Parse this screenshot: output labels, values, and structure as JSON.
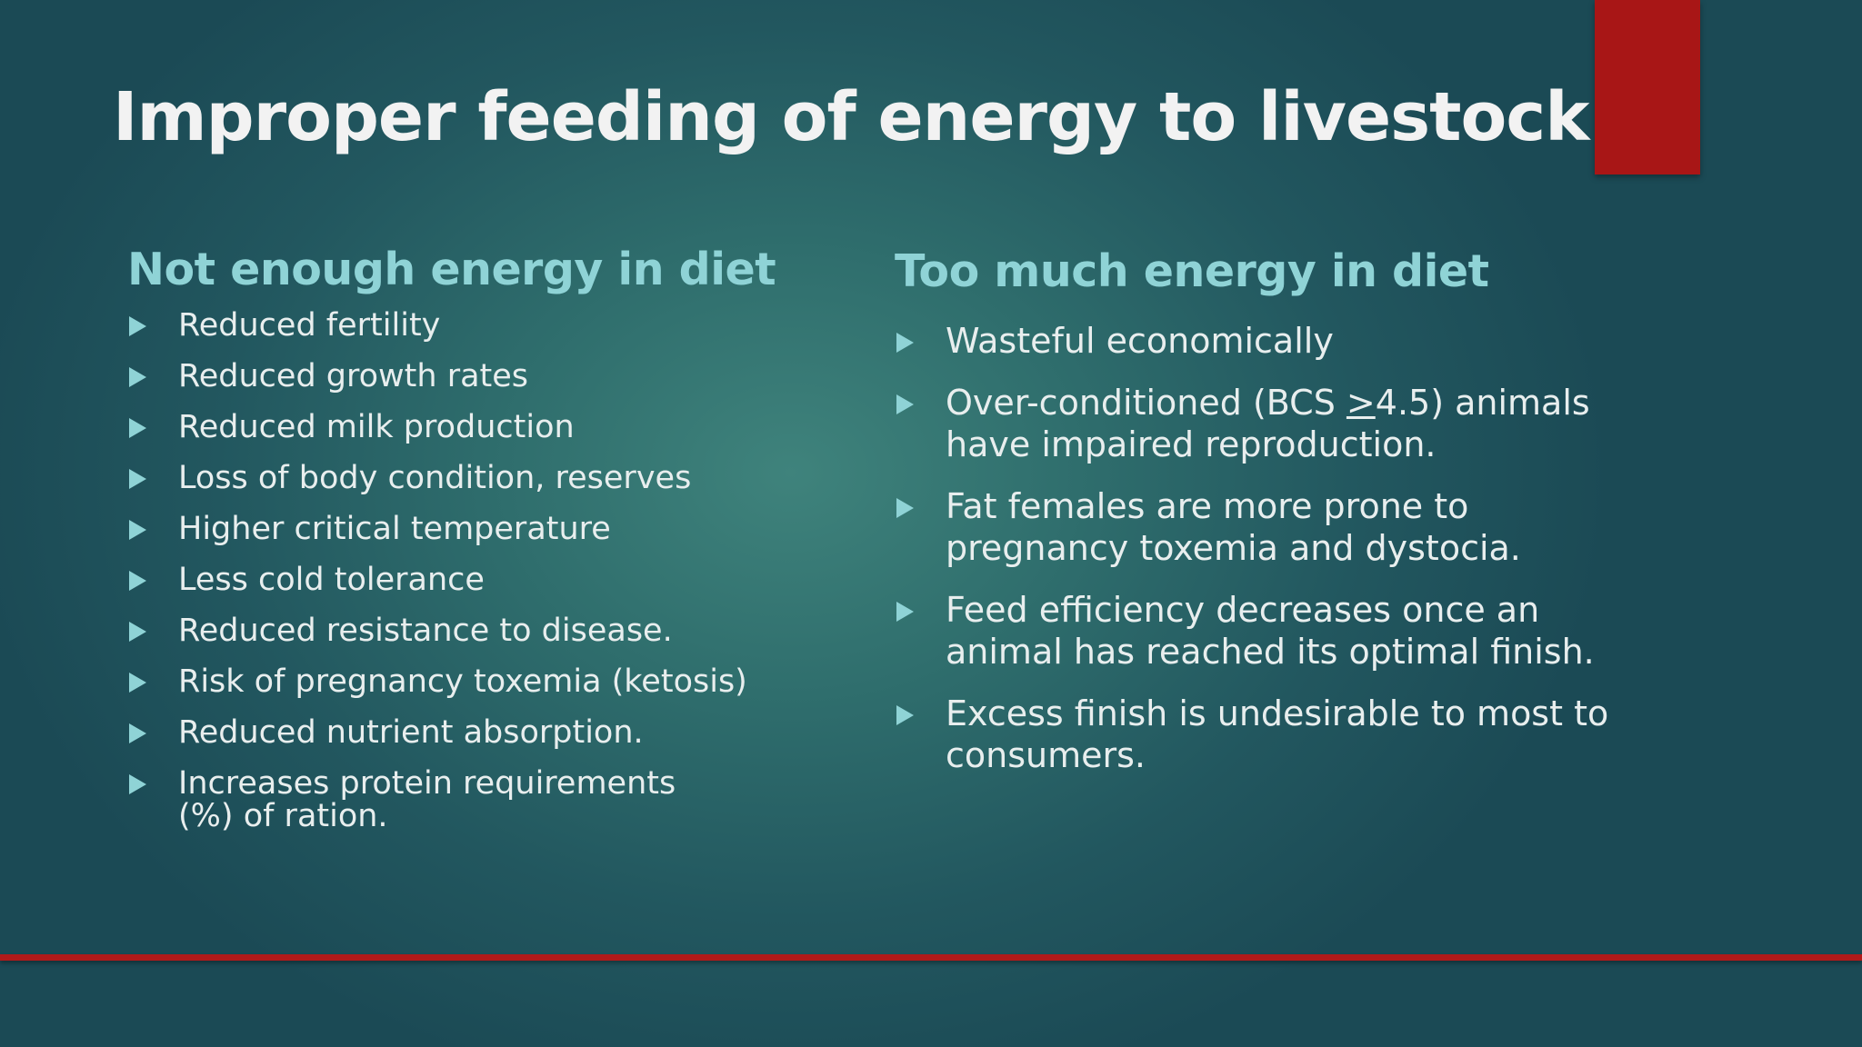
{
  "slide": {
    "title": "Improper feeding of energy to livestock",
    "accent_color": "#a81616",
    "heading_color": "#8fd3d6",
    "left": {
      "heading": "Not enough energy in diet",
      "items": [
        {
          "lines": [
            "Reduced fertility"
          ]
        },
        {
          "lines": [
            "Reduced growth rates"
          ]
        },
        {
          "lines": [
            "Reduced milk production"
          ]
        },
        {
          "lines": [
            "Loss of body condition, reserves"
          ]
        },
        {
          "lines": [
            "Higher critical temperature"
          ]
        },
        {
          "lines": [
            "Less cold tolerance"
          ]
        },
        {
          "lines": [
            "Reduced resistance to disease."
          ]
        },
        {
          "lines": [
            "Risk of pregnancy toxemia (ketosis)"
          ]
        },
        {
          "lines": [
            "Reduced nutrient absorption."
          ]
        },
        {
          "lines": [
            "Increases protein requirements",
            "(%) of ration."
          ]
        }
      ]
    },
    "right": {
      "heading": "Too much energy in diet",
      "items": [
        {
          "lines": [
            "Wasteful economically"
          ]
        },
        {
          "lines": [
            "Over-conditioned (BCS >4.5) animals",
            "have impaired reproduction."
          ]
        },
        {
          "lines": [
            "Fat females are more prone to",
            "pregnancy toxemia and dystocia."
          ]
        },
        {
          "lines": [
            "Feed efficiency decreases once an",
            "animal has reached its optimal finish."
          ]
        },
        {
          "lines": [
            "Excess finish is undesirable to most to",
            "consumers."
          ]
        }
      ]
    }
  }
}
